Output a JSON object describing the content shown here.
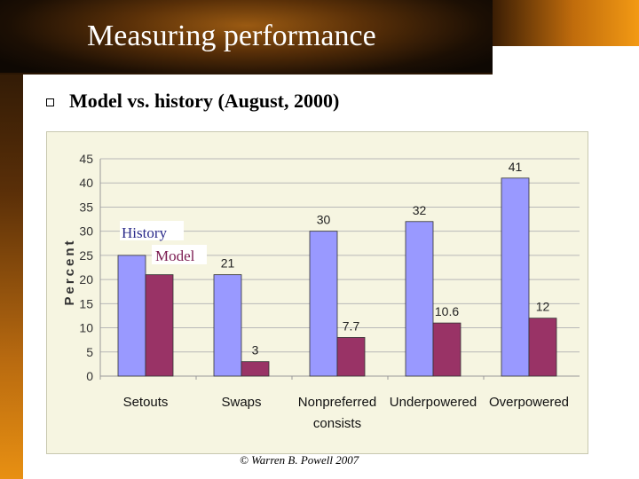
{
  "slide": {
    "title": "Measuring performance",
    "bullet": "Model vs. history (August, 2000)",
    "copyright": "© Warren B. Powell 2007"
  },
  "colors": {
    "history": "#9999ff",
    "model": "#993366",
    "plot_bg": "#f6f5e1"
  },
  "chart_data": {
    "type": "bar",
    "title": "",
    "xlabel": "",
    "ylabel": "Percent",
    "ylim": [
      0,
      45
    ],
    "yticks": [
      0,
      5,
      10,
      15,
      20,
      25,
      30,
      35,
      40,
      45
    ],
    "grid": true,
    "legend_position": "top-left",
    "categories": [
      "Setouts",
      "Swaps",
      "Nonpreferred consists",
      "Underpowered",
      "Overpowered"
    ],
    "category_lines": [
      [
        "Setouts"
      ],
      [
        "Swaps"
      ],
      [
        "Nonpreferred",
        "consists"
      ],
      [
        "Underpowered"
      ],
      [
        "Overpowered"
      ]
    ],
    "series": [
      {
        "name": "History",
        "values": [
          25,
          21,
          30,
          32,
          41
        ],
        "labels": [
          "",
          "21",
          "30",
          "32",
          "41"
        ]
      },
      {
        "name": "Model",
        "values": [
          21,
          3,
          8,
          11,
          12
        ],
        "labels": [
          "",
          "3",
          "7.7",
          "10.6",
          "12"
        ]
      }
    ]
  }
}
